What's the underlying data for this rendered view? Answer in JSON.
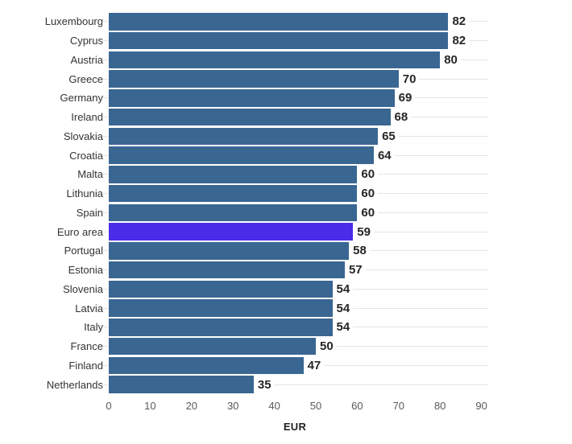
{
  "chart_data": {
    "type": "bar",
    "orientation": "horizontal",
    "title": "",
    "xlabel": "EUR",
    "xlim": [
      0,
      90
    ],
    "xticks": [
      0,
      10,
      20,
      30,
      40,
      50,
      60,
      70,
      80,
      90
    ],
    "grid": "row-leader-lines",
    "legend": "none",
    "categories": [
      "Luxembourg",
      "Cyprus",
      "Austria",
      "Greece",
      "Germany",
      "Ireland",
      "Slovakia",
      "Croatia",
      "Malta",
      "Lithunia",
      "Spain",
      "Euro area",
      "Portugal",
      "Estonia",
      "Slovenia",
      "Latvia",
      "Italy",
      "France",
      "Finland",
      "Netherlands"
    ],
    "values": [
      82,
      82,
      80,
      70,
      69,
      68,
      65,
      64,
      60,
      60,
      60,
      59,
      58,
      57,
      54,
      54,
      54,
      50,
      47,
      35
    ],
    "highlight_category": "Euro area",
    "colors": {
      "bar": "#3A6692",
      "highlight": "#4A2CE9",
      "leader_line": "#E5E5E5",
      "category_label": "#333333",
      "value_label": "#262626",
      "tick_label": "#595959",
      "axis_title": "#1F1F1F",
      "background": "#FFFFFF"
    }
  }
}
